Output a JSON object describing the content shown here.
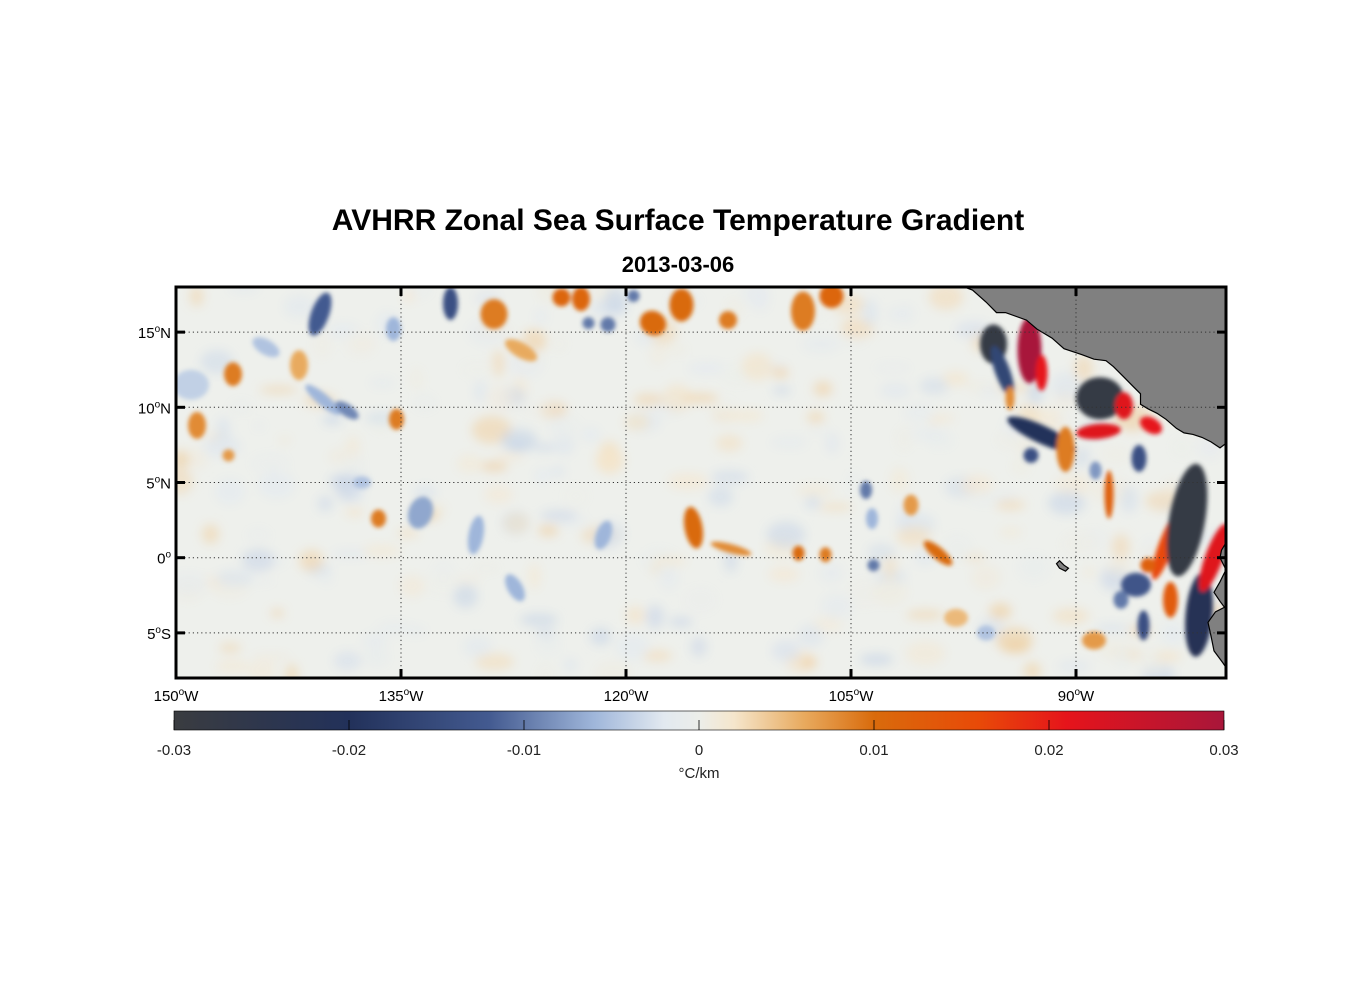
{
  "map": {
    "title": "AVHRR Zonal Sea Surface Temperature Gradient",
    "subtitle": "2013-03-06",
    "projection": "equirectangular",
    "lon_range": [
      -150,
      -80
    ],
    "lat_range": [
      -8,
      18
    ],
    "grid": "dotted",
    "land_color": "#808080",
    "lon_ticks": [
      {
        "value": -150,
        "num": "150",
        "hemi": "W"
      },
      {
        "value": -135,
        "num": "135",
        "hemi": "W"
      },
      {
        "value": -120,
        "num": "120",
        "hemi": "W"
      },
      {
        "value": -105,
        "num": "105",
        "hemi": "W"
      },
      {
        "value": -90,
        "num": "90",
        "hemi": "W"
      }
    ],
    "lat_ticks": [
      {
        "value": 15,
        "num": "15",
        "hemi": "N"
      },
      {
        "value": 10,
        "num": "10",
        "hemi": "N"
      },
      {
        "value": 5,
        "num": "5",
        "hemi": "N"
      },
      {
        "value": 0,
        "num": "0",
        "hemi": ""
      },
      {
        "value": -5,
        "num": "5",
        "hemi": "S"
      }
    ],
    "degree_symbol": "o"
  },
  "colorbar": {
    "range": [
      -0.03,
      0.03
    ],
    "ticks": [
      {
        "value": -0.03,
        "label": "-0.03"
      },
      {
        "value": -0.02,
        "label": "-0.02"
      },
      {
        "value": -0.01,
        "label": "-0.01"
      },
      {
        "value": 0,
        "label": "0"
      },
      {
        "value": 0.01,
        "label": "0.01"
      },
      {
        "value": 0.02,
        "label": "0.02"
      },
      {
        "value": 0.03,
        "label": "0.03"
      }
    ],
    "label": "°C/km",
    "stops": [
      {
        "v": -0.03,
        "c": "#3a3c40"
      },
      {
        "v": -0.02,
        "c": "#22315a"
      },
      {
        "v": -0.012,
        "c": "#435a90"
      },
      {
        "v": -0.006,
        "c": "#9fb6da"
      },
      {
        "v": -0.002,
        "c": "#e2e9f0"
      },
      {
        "v": 0.0,
        "c": "#eceeea"
      },
      {
        "v": 0.002,
        "c": "#f5e6cc"
      },
      {
        "v": 0.006,
        "c": "#e8aa5e"
      },
      {
        "v": 0.01,
        "c": "#d96b0c"
      },
      {
        "v": 0.016,
        "c": "#e84a08"
      },
      {
        "v": 0.021,
        "c": "#e6141b"
      },
      {
        "v": 0.03,
        "c": "#a8163a"
      }
    ]
  },
  "features": [
    {
      "lon": -149.0,
      "lat": 11.5,
      "v": -0.004,
      "rx": 1.2,
      "ry": 1.0,
      "rot": 0
    },
    {
      "lon": -148.6,
      "lat": 8.8,
      "v": 0.008,
      "rx": 0.6,
      "ry": 0.9,
      "rot": 0
    },
    {
      "lon": -146.2,
      "lat": 12.2,
      "v": 0.009,
      "rx": 0.6,
      "ry": 0.8,
      "rot": 0
    },
    {
      "lon": -146.5,
      "lat": 6.8,
      "v": 0.007,
      "rx": 0.4,
      "ry": 0.4,
      "rot": 0
    },
    {
      "lon": -144.0,
      "lat": 14.0,
      "v": -0.005,
      "rx": 1.0,
      "ry": 0.5,
      "rot": 30
    },
    {
      "lon": -141.8,
      "lat": 12.8,
      "v": 0.006,
      "rx": 0.6,
      "ry": 1.0,
      "rot": 0
    },
    {
      "lon": -140.4,
      "lat": 16.2,
      "v": -0.012,
      "rx": 0.6,
      "ry": 1.5,
      "rot": 20
    },
    {
      "lon": -140.2,
      "lat": 10.5,
      "v": -0.006,
      "rx": 1.5,
      "ry": 0.4,
      "rot": 40
    },
    {
      "lon": -138.6,
      "lat": 9.8,
      "v": -0.009,
      "rx": 0.9,
      "ry": 0.4,
      "rot": 35
    },
    {
      "lon": -135.3,
      "lat": 9.2,
      "v": 0.009,
      "rx": 0.5,
      "ry": 0.7,
      "rot": 0
    },
    {
      "lon": -135.5,
      "lat": 15.2,
      "v": -0.006,
      "rx": 0.5,
      "ry": 0.8,
      "rot": 0
    },
    {
      "lon": -131.7,
      "lat": 16.9,
      "v": -0.014,
      "rx": 0.5,
      "ry": 1.1,
      "rot": 0
    },
    {
      "lon": -128.8,
      "lat": 16.2,
      "v": 0.009,
      "rx": 0.9,
      "ry": 1.0,
      "rot": 0
    },
    {
      "lon": -127.0,
      "lat": 13.8,
      "v": 0.006,
      "rx": 1.2,
      "ry": 0.5,
      "rot": 30
    },
    {
      "lon": -124.3,
      "lat": 17.3,
      "v": 0.011,
      "rx": 0.6,
      "ry": 0.6,
      "rot": 0
    },
    {
      "lon": -123.0,
      "lat": 17.2,
      "v": 0.011,
      "rx": 0.6,
      "ry": 0.8,
      "rot": 0
    },
    {
      "lon": -122.5,
      "lat": 15.6,
      "v": -0.01,
      "rx": 0.4,
      "ry": 0.4,
      "rot": 0
    },
    {
      "lon": -121.2,
      "lat": 15.5,
      "v": -0.01,
      "rx": 0.5,
      "ry": 0.5,
      "rot": 0
    },
    {
      "lon": -119.5,
      "lat": 17.4,
      "v": -0.01,
      "rx": 0.4,
      "ry": 0.4,
      "rot": 0
    },
    {
      "lon": -118.2,
      "lat": 15.6,
      "v": 0.01,
      "rx": 0.9,
      "ry": 0.8,
      "rot": 30
    },
    {
      "lon": -116.3,
      "lat": 16.8,
      "v": 0.01,
      "rx": 0.8,
      "ry": 1.1,
      "rot": 0
    },
    {
      "lon": -113.2,
      "lat": 15.8,
      "v": 0.009,
      "rx": 0.6,
      "ry": 0.6,
      "rot": 0
    },
    {
      "lon": -108.2,
      "lat": 16.4,
      "v": 0.009,
      "rx": 0.8,
      "ry": 1.3,
      "rot": 0
    },
    {
      "lon": -106.3,
      "lat": 17.4,
      "v": 0.011,
      "rx": 0.8,
      "ry": 0.8,
      "rot": 0
    },
    {
      "lon": -137.6,
      "lat": 5.0,
      "v": -0.005,
      "rx": 0.6,
      "ry": 0.4,
      "rot": 0
    },
    {
      "lon": -136.5,
      "lat": 2.6,
      "v": 0.009,
      "rx": 0.5,
      "ry": 0.6,
      "rot": 0
    },
    {
      "lon": -133.7,
      "lat": 3.0,
      "v": -0.007,
      "rx": 0.8,
      "ry": 1.1,
      "rot": 20
    },
    {
      "lon": -130.0,
      "lat": 1.5,
      "v": -0.006,
      "rx": 0.5,
      "ry": 1.3,
      "rot": 10
    },
    {
      "lon": -127.4,
      "lat": -2.0,
      "v": -0.006,
      "rx": 0.5,
      "ry": 1.0,
      "rot": -30
    },
    {
      "lon": -121.5,
      "lat": 1.5,
      "v": -0.006,
      "rx": 0.5,
      "ry": 1.0,
      "rot": 20
    },
    {
      "lon": -115.5,
      "lat": 2.0,
      "v": 0.01,
      "rx": 0.6,
      "ry": 1.4,
      "rot": -10
    },
    {
      "lon": -113.0,
      "lat": 0.6,
      "v": 0.008,
      "rx": 1.4,
      "ry": 0.3,
      "rot": 15
    },
    {
      "lon": -108.5,
      "lat": 0.3,
      "v": 0.01,
      "rx": 0.4,
      "ry": 0.5,
      "rot": 0
    },
    {
      "lon": -106.7,
      "lat": 0.2,
      "v": 0.009,
      "rx": 0.4,
      "ry": 0.5,
      "rot": 0
    },
    {
      "lon": -104.0,
      "lat": 4.5,
      "v": -0.01,
      "rx": 0.4,
      "ry": 0.6,
      "rot": 0
    },
    {
      "lon": -103.6,
      "lat": 2.6,
      "v": -0.006,
      "rx": 0.4,
      "ry": 0.7,
      "rot": 0
    },
    {
      "lon": -103.5,
      "lat": -0.5,
      "v": -0.01,
      "rx": 0.4,
      "ry": 0.4,
      "rot": 0
    },
    {
      "lon": -101.0,
      "lat": 3.5,
      "v": 0.007,
      "rx": 0.5,
      "ry": 0.7,
      "rot": 0
    },
    {
      "lon": -99.2,
      "lat": 0.3,
      "v": 0.01,
      "rx": 1.2,
      "ry": 0.4,
      "rot": 40
    },
    {
      "lon": -98.0,
      "lat": -4.0,
      "v": 0.005,
      "rx": 0.8,
      "ry": 0.6,
      "rot": 0
    },
    {
      "lon": -95.5,
      "lat": 14.2,
      "v": -0.028,
      "rx": 0.9,
      "ry": 1.3,
      "rot": 0
    },
    {
      "lon": -94.9,
      "lat": 12.4,
      "v": -0.016,
      "rx": 0.5,
      "ry": 1.8,
      "rot": -20
    },
    {
      "lon": -93.1,
      "lat": 13.8,
      "v": 0.03,
      "rx": 0.8,
      "ry": 2.2,
      "rot": 0
    },
    {
      "lon": -92.3,
      "lat": 12.3,
      "v": 0.021,
      "rx": 0.4,
      "ry": 1.2,
      "rot": 0
    },
    {
      "lon": -94.4,
      "lat": 10.6,
      "v": 0.008,
      "rx": 0.3,
      "ry": 0.8,
      "rot": 0
    },
    {
      "lon": -92.3,
      "lat": 8.2,
      "v": -0.02,
      "rx": 2.5,
      "ry": 0.6,
      "rot": 25
    },
    {
      "lon": -93.0,
      "lat": 6.8,
      "v": -0.014,
      "rx": 0.5,
      "ry": 0.5,
      "rot": 0
    },
    {
      "lon": -90.7,
      "lat": 7.2,
      "v": 0.009,
      "rx": 0.6,
      "ry": 1.5,
      "rot": 0
    },
    {
      "lon": -88.4,
      "lat": 10.6,
      "v": -0.028,
      "rx": 1.6,
      "ry": 1.4,
      "rot": 0
    },
    {
      "lon": -86.8,
      "lat": 10.1,
      "v": 0.022,
      "rx": 0.6,
      "ry": 0.9,
      "rot": 0
    },
    {
      "lon": -88.5,
      "lat": 8.4,
      "v": 0.022,
      "rx": 1.5,
      "ry": 0.5,
      "rot": -5
    },
    {
      "lon": -85.0,
      "lat": 8.8,
      "v": 0.021,
      "rx": 0.8,
      "ry": 0.5,
      "rot": 30
    },
    {
      "lon": -85.8,
      "lat": 6.6,
      "v": -0.014,
      "rx": 0.5,
      "ry": 0.9,
      "rot": 0
    },
    {
      "lon": -88.7,
      "lat": 5.8,
      "v": -0.008,
      "rx": 0.4,
      "ry": 0.6,
      "rot": 0
    },
    {
      "lon": -87.8,
      "lat": 4.2,
      "v": 0.012,
      "rx": 0.3,
      "ry": 1.6,
      "rot": 0
    },
    {
      "lon": -84.0,
      "lat": 0.8,
      "v": 0.016,
      "rx": 0.5,
      "ry": 2.4,
      "rot": 20
    },
    {
      "lon": -82.6,
      "lat": 2.5,
      "v": -0.028,
      "rx": 1.2,
      "ry": 3.8,
      "rot": 10
    },
    {
      "lon": -81.8,
      "lat": -3.8,
      "v": -0.022,
      "rx": 0.9,
      "ry": 2.8,
      "rot": 5
    },
    {
      "lon": -80.8,
      "lat": 0.0,
      "v": 0.022,
      "rx": 0.6,
      "ry": 2.4,
      "rot": 20
    },
    {
      "lon": -83.7,
      "lat": -2.8,
      "v": 0.013,
      "rx": 0.5,
      "ry": 1.2,
      "rot": 0
    },
    {
      "lon": -86.0,
      "lat": -1.8,
      "v": -0.013,
      "rx": 1.0,
      "ry": 0.8,
      "rot": 0
    },
    {
      "lon": -85.2,
      "lat": -0.5,
      "v": 0.012,
      "rx": 0.5,
      "ry": 0.5,
      "rot": 0
    },
    {
      "lon": -87.0,
      "lat": -2.8,
      "v": -0.01,
      "rx": 0.5,
      "ry": 0.6,
      "rot": 0
    },
    {
      "lon": -85.5,
      "lat": -4.5,
      "v": -0.014,
      "rx": 0.4,
      "ry": 1.0,
      "rot": 0
    },
    {
      "lon": -88.8,
      "lat": -5.5,
      "v": 0.007,
      "rx": 0.8,
      "ry": 0.6,
      "rot": 0
    },
    {
      "lon": -96.0,
      "lat": -5.0,
      "v": -0.005,
      "rx": 0.6,
      "ry": 0.5,
      "rot": 0
    }
  ],
  "land": [
    {
      "name": "central-america",
      "points": [
        [
          -98.0,
          18.2
        ],
        [
          -96.9,
          17.8
        ],
        [
          -96.0,
          17.0
        ],
        [
          -95.3,
          16.3
        ],
        [
          -94.7,
          16.3
        ],
        [
          -93.3,
          15.8
        ],
        [
          -92.6,
          15.2
        ],
        [
          -91.6,
          14.6
        ],
        [
          -90.8,
          13.9
        ],
        [
          -89.6,
          13.5
        ],
        [
          -88.8,
          13.2
        ],
        [
          -88.0,
          13.1
        ],
        [
          -87.5,
          12.7
        ],
        [
          -86.8,
          12.0
        ],
        [
          -86.2,
          11.4
        ],
        [
          -85.7,
          10.9
        ],
        [
          -85.7,
          10.2
        ],
        [
          -85.2,
          9.9
        ],
        [
          -84.6,
          9.6
        ],
        [
          -84.0,
          9.2
        ],
        [
          -83.3,
          8.6
        ],
        [
          -82.8,
          8.3
        ],
        [
          -82.2,
          8.2
        ],
        [
          -81.6,
          8.0
        ],
        [
          -81.0,
          7.7
        ],
        [
          -80.4,
          7.3
        ],
        [
          -80.0,
          7.6
        ],
        [
          -80.0,
          18.2
        ]
      ]
    },
    {
      "name": "south-america",
      "points": [
        [
          -80.0,
          1.0
        ],
        [
          -80.3,
          0.5
        ],
        [
          -80.4,
          0.0
        ],
        [
          -80.0,
          -0.8
        ],
        [
          -80.4,
          -1.6
        ],
        [
          -80.8,
          -2.3
        ],
        [
          -80.4,
          -2.9
        ],
        [
          -80.1,
          -3.3
        ],
        [
          -80.7,
          -3.6
        ],
        [
          -81.2,
          -4.3
        ],
        [
          -81.0,
          -5.2
        ],
        [
          -80.8,
          -6.2
        ],
        [
          -80.2,
          -7.0
        ],
        [
          -79.8,
          -7.6
        ],
        [
          -80.0,
          -8.0
        ],
        [
          -80.0,
          1.0
        ]
      ]
    },
    {
      "name": "galapagos",
      "points": [
        [
          -91.1,
          -0.2
        ],
        [
          -90.8,
          -0.5
        ],
        [
          -90.5,
          -0.7
        ],
        [
          -90.7,
          -0.9
        ],
        [
          -91.1,
          -0.7
        ],
        [
          -91.3,
          -0.4
        ]
      ]
    }
  ]
}
